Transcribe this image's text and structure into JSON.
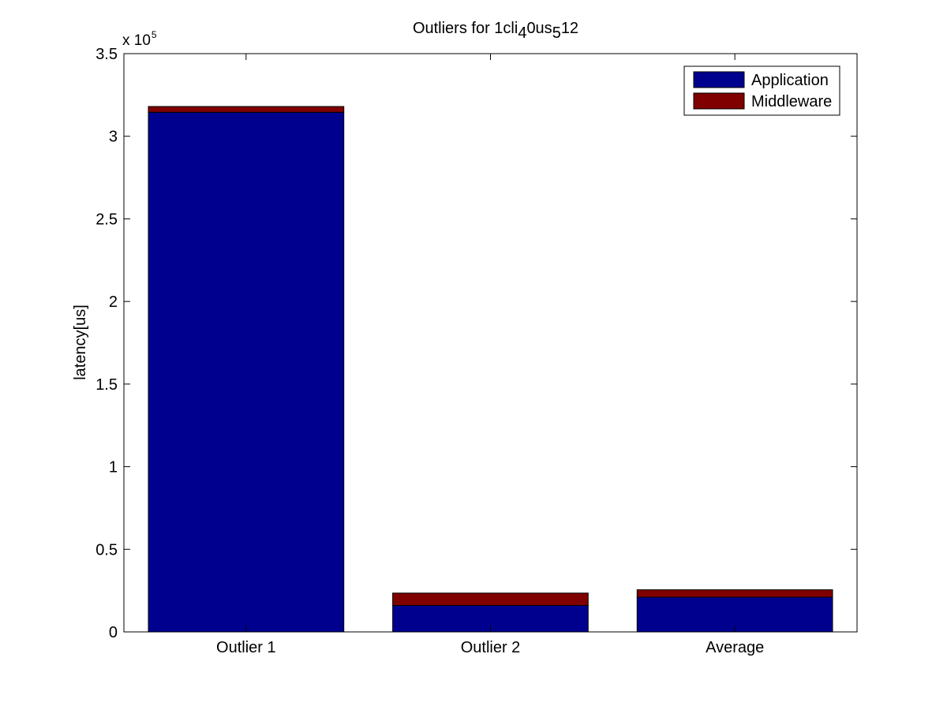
{
  "figure": {
    "title_parts": [
      {
        "text": "Outliers for 1cli",
        "sub": false
      },
      {
        "text": "4",
        "sub": true
      },
      {
        "text": "0us",
        "sub": false
      },
      {
        "text": "5",
        "sub": true
      },
      {
        "text": "12",
        "sub": false
      }
    ],
    "ylabel": "latency[us]",
    "exponent_base": "x 10",
    "exponent_power": "5"
  },
  "chart_data": {
    "type": "bar",
    "stacked": true,
    "title": "Outliers for 1cli40us512",
    "xlabel": "",
    "ylabel": "latency[us]",
    "categories": [
      "Outlier 1",
      "Outlier 2",
      "Average"
    ],
    "series": [
      {
        "name": "Application",
        "color": "#00008f",
        "values": [
          314500,
          16000,
          21000
        ]
      },
      {
        "name": "Middleware",
        "color": "#800000",
        "values": [
          3500,
          7500,
          4500
        ]
      }
    ],
    "ylim": [
      0,
      350000
    ],
    "y_ticks": [
      0,
      50000,
      100000,
      150000,
      200000,
      250000,
      300000,
      350000
    ],
    "y_tick_labels": [
      "0",
      "0.5",
      "1",
      "1.5",
      "2",
      "2.5",
      "3",
      "3.5"
    ],
    "y_scale_factor": 100000,
    "grid": false,
    "legend_position": "top-right"
  }
}
